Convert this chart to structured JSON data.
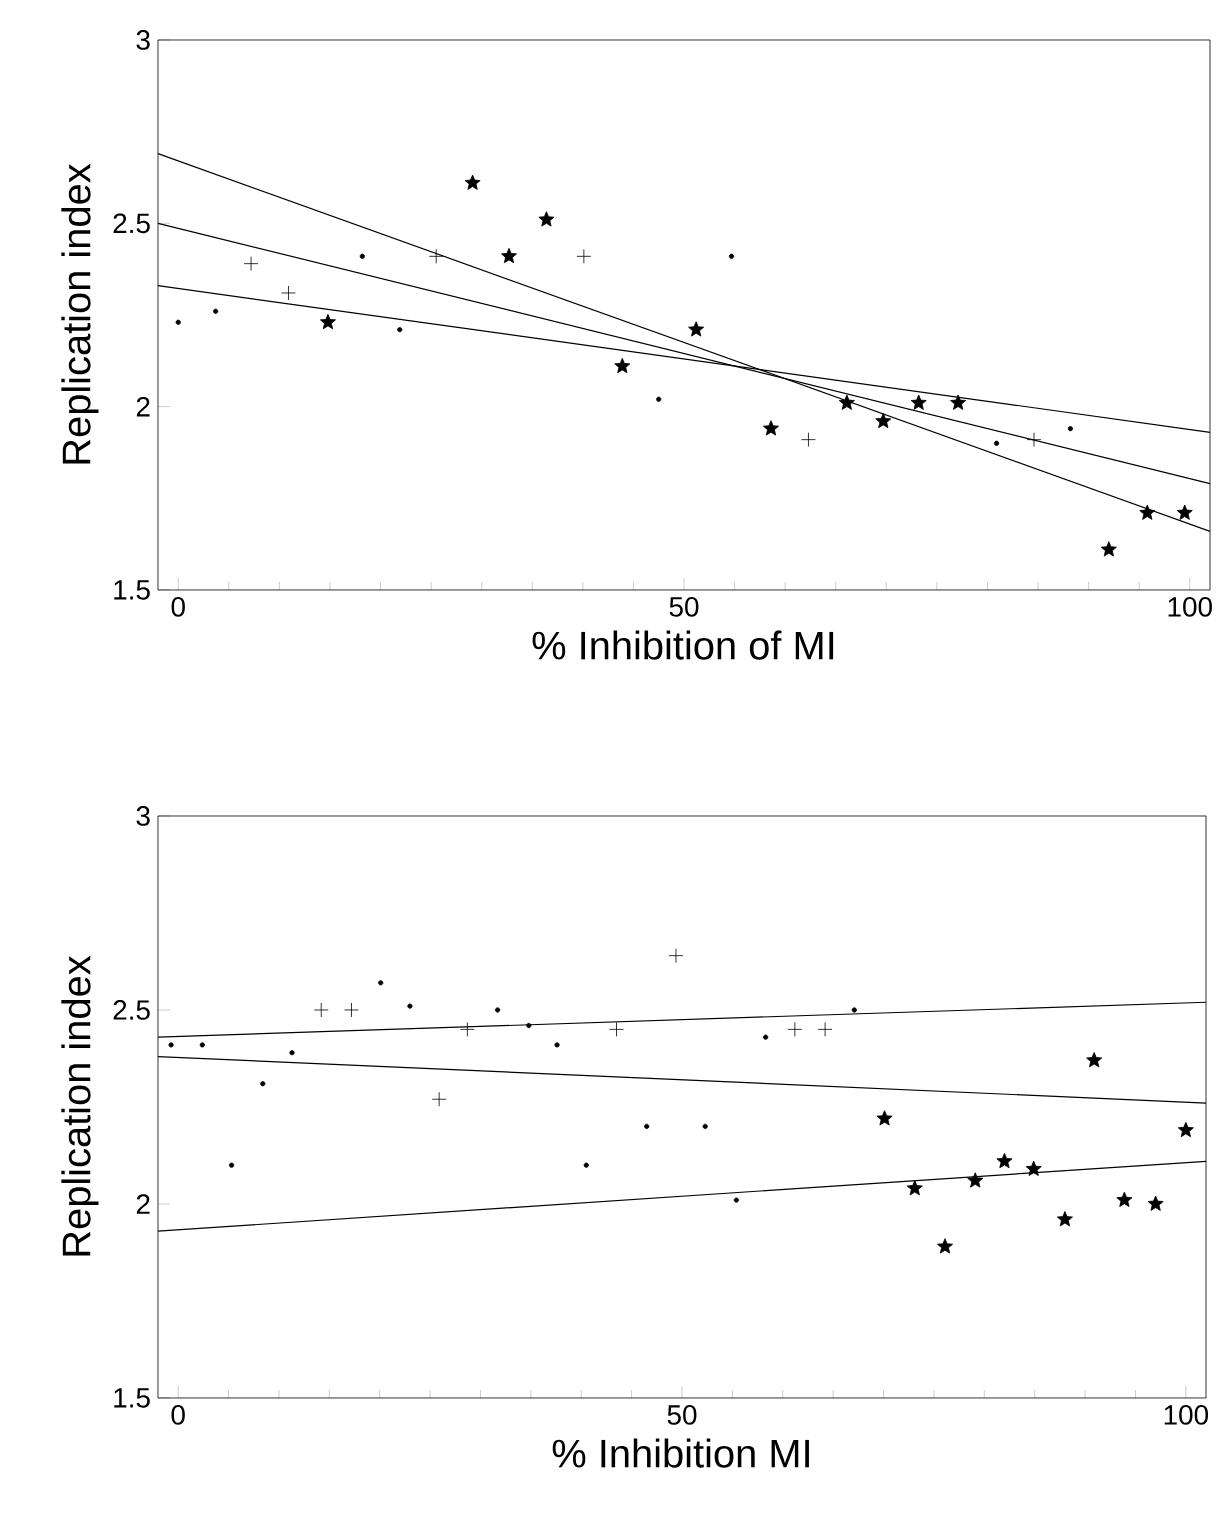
{
  "chart_data": [
    {
      "type": "scatter",
      "xlabel": "% Inhibition of MI",
      "ylabel": "Replication index",
      "xlim": [
        -2,
        102
      ],
      "ylim": [
        1.5,
        3
      ],
      "xticks": [
        0,
        50,
        100
      ],
      "yticks": [
        1.5,
        2,
        2.5,
        3
      ],
      "series": [
        {
          "marker": "circle",
          "color": "#000000",
          "x": [
            0,
            3.7,
            18.2,
            21.9,
            54.7,
            47.5,
            80.9,
            88.2
          ],
          "values": [
            2.23,
            2.26,
            2.41,
            2.21,
            2.41,
            2.02,
            1.9,
            1.94
          ]
        },
        {
          "marker": "cross",
          "color": "#000000",
          "x": [
            7.2,
            10.9,
            25.5,
            40.1,
            62.3,
            84.6
          ],
          "values": [
            2.39,
            2.31,
            2.41,
            2.41,
            1.91,
            1.91
          ]
        },
        {
          "marker": "star",
          "color": "#000000",
          "x": [
            14.8,
            29.1,
            32.7,
            36.4,
            43.9,
            51.2,
            58.6,
            66.1,
            69.7,
            73.2,
            77.1,
            92.0,
            95.8,
            99.5
          ],
          "values": [
            2.23,
            2.61,
            2.41,
            2.51,
            2.11,
            2.21,
            1.94,
            2.01,
            1.96,
            2.01,
            2.01,
            1.61,
            1.71,
            1.71
          ]
        },
        {
          "type": "line",
          "color": "#000000",
          "x": [
            -2,
            102
          ],
          "values": [
            2.69,
            1.66
          ]
        },
        {
          "type": "line",
          "color": "#000000",
          "x": [
            -2,
            102
          ],
          "values": [
            2.5,
            1.79
          ]
        },
        {
          "type": "line",
          "color": "#000000",
          "x": [
            -2,
            102
          ],
          "values": [
            2.33,
            1.93
          ]
        }
      ]
    },
    {
      "type": "scatter",
      "xlabel": "% Inhibition MI",
      "ylabel": "Replication index",
      "xlim": [
        -2,
        102
      ],
      "ylim": [
        1.5,
        3
      ],
      "xticks": [
        0,
        50,
        100
      ],
      "yticks": [
        1.5,
        2,
        2.5,
        3
      ],
      "series": [
        {
          "marker": "circle",
          "color": "#000000",
          "x": [
            -0.7,
            2.4,
            8.4,
            11.3,
            20.1,
            23.0,
            31.7,
            34.8,
            37.6,
            46.5,
            52.3,
            58.3,
            67.1,
            5.3,
            40.5,
            55.4
          ],
          "values": [
            2.41,
            2.41,
            2.31,
            2.39,
            2.57,
            2.51,
            2.5,
            2.46,
            2.41,
            2.2,
            2.2,
            2.43,
            2.5,
            2.1,
            2.1,
            2.01
          ]
        },
        {
          "marker": "cross",
          "color": "#000000",
          "x": [
            14.2,
            17.2,
            25.9,
            28.7,
            43.5,
            49.4,
            61.2,
            64.2
          ],
          "values": [
            2.5,
            2.5,
            2.27,
            2.45,
            2.45,
            2.64,
            2.45,
            2.45
          ]
        },
        {
          "marker": "star",
          "color": "#000000",
          "x": [
            70.1,
            90.9,
            100.0,
            73.1,
            76.1,
            79.1,
            82.0,
            84.9,
            88.0,
            93.9,
            97.0
          ],
          "values": [
            2.22,
            2.37,
            2.19,
            2.04,
            1.89,
            2.06,
            2.11,
            2.09,
            1.96,
            2.01,
            2.0
          ]
        },
        {
          "type": "line",
          "color": "#000000",
          "x": [
            -2,
            102
          ],
          "values": [
            2.43,
            2.52
          ]
        },
        {
          "type": "line",
          "color": "#000000",
          "x": [
            -2,
            102
          ],
          "values": [
            2.38,
            2.26
          ]
        },
        {
          "type": "line",
          "color": "#000000",
          "x": [
            -2,
            102
          ],
          "values": [
            1.93,
            2.11
          ]
        }
      ]
    }
  ]
}
